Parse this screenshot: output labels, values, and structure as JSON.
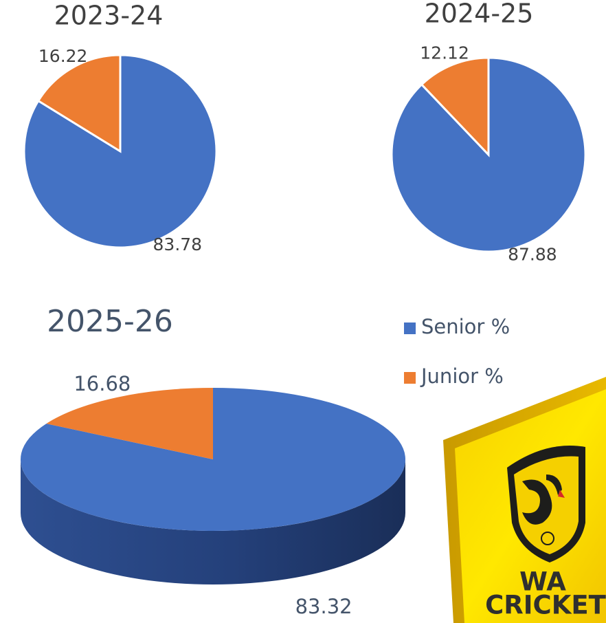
{
  "chart_data": [
    {
      "type": "pie",
      "title": "2023-24",
      "categories": [
        "Senior %",
        "Junior %"
      ],
      "values": [
        83.78,
        16.22
      ],
      "colors": [
        "#4472c4",
        "#ed7d31"
      ]
    },
    {
      "type": "pie",
      "title": "2024-25",
      "categories": [
        "Senior %",
        "Junior %"
      ],
      "values": [
        87.88,
        12.12
      ],
      "colors": [
        "#4472c4",
        "#ed7d31"
      ]
    },
    {
      "type": "pie3d",
      "title": "2025-26",
      "categories": [
        "Senior %",
        "Junior %"
      ],
      "values": [
        83.32,
        16.68
      ],
      "colors": [
        "#4472c4",
        "#ed7d31"
      ],
      "legend": "right"
    }
  ],
  "logo": {
    "lines": [
      "WA",
      "CRICKET"
    ]
  }
}
